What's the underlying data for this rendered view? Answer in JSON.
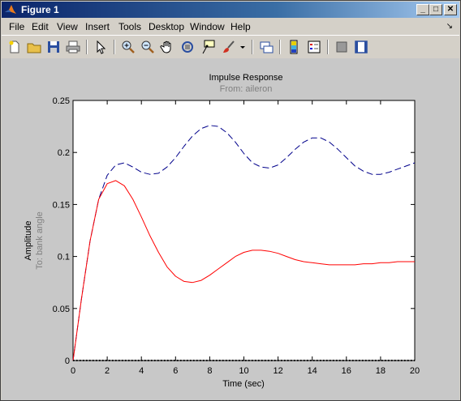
{
  "window": {
    "title": "Figure 1",
    "buttons": {
      "minimize": "_",
      "maximize": "□",
      "close": "✕"
    }
  },
  "menu": {
    "items": [
      "File",
      "Edit",
      "View",
      "Insert",
      "Tools",
      "Desktop",
      "Window",
      "Help"
    ],
    "dock_arrow": "↘"
  },
  "toolbar": {
    "icons": [
      "new-file-icon",
      "open-folder-icon",
      "save-icon",
      "print-icon",
      "pointer-icon",
      "zoom-in-icon",
      "zoom-out-icon",
      "pan-hand-icon",
      "rotate-3d-icon",
      "data-cursor-icon",
      "brush-icon",
      "brush-dropdown-icon",
      "link-plot-icon",
      "insert-colorbar-icon",
      "insert-legend-icon",
      "hide-plot-tools-icon",
      "show-plot-tools-icon"
    ]
  },
  "chart_data": {
    "type": "line",
    "title": "Impulse Response",
    "subtitle": "From: aileron",
    "xlabel": "Time (sec)",
    "ylabel": "Amplitude",
    "ylabel_sub": "To: bank angle",
    "xlim": [
      0,
      20
    ],
    "ylim": [
      0,
      0.25
    ],
    "xticks": [
      "0",
      "2",
      "4",
      "6",
      "8",
      "10",
      "12",
      "14",
      "16",
      "18",
      "20"
    ],
    "yticks": [
      "0",
      "0.05",
      "0.1",
      "0.15",
      "0.2",
      "0.25"
    ],
    "grid": false,
    "series": [
      {
        "color": "#00008b",
        "style": "dashed",
        "x": [
          0,
          0.5,
          1,
          1.5,
          2,
          2.5,
          3,
          3.5,
          4,
          4.5,
          5,
          5.5,
          6,
          6.5,
          7,
          7.5,
          8,
          8.5,
          9,
          9.5,
          10,
          10.5,
          11,
          11.5,
          12,
          12.5,
          13,
          13.5,
          14,
          14.5,
          15,
          15.5,
          16,
          16.5,
          17,
          17.5,
          18,
          18.5,
          19,
          19.5,
          20
        ],
        "y": [
          0,
          0.06,
          0.115,
          0.155,
          0.178,
          0.188,
          0.19,
          0.186,
          0.181,
          0.179,
          0.18,
          0.186,
          0.195,
          0.206,
          0.216,
          0.223,
          0.226,
          0.225,
          0.219,
          0.21,
          0.199,
          0.19,
          0.186,
          0.185,
          0.188,
          0.195,
          0.203,
          0.21,
          0.214,
          0.214,
          0.21,
          0.203,
          0.195,
          0.187,
          0.182,
          0.179,
          0.179,
          0.181,
          0.184,
          0.187,
          0.19
        ]
      },
      {
        "color": "#ff0000",
        "style": "solid",
        "x": [
          0,
          0.5,
          1,
          1.5,
          2,
          2.5,
          3,
          3.5,
          4,
          4.5,
          5,
          5.5,
          6,
          6.5,
          7,
          7.5,
          8,
          8.5,
          9,
          9.5,
          10,
          10.5,
          11,
          11.5,
          12,
          12.5,
          13,
          13.5,
          14,
          14.5,
          15,
          15.5,
          16,
          16.5,
          17,
          17.5,
          18,
          18.5,
          19,
          19.5,
          20
        ],
        "y": [
          0,
          0.06,
          0.115,
          0.155,
          0.17,
          0.173,
          0.168,
          0.155,
          0.138,
          0.12,
          0.104,
          0.09,
          0.081,
          0.076,
          0.075,
          0.077,
          0.082,
          0.088,
          0.094,
          0.1,
          0.104,
          0.106,
          0.106,
          0.105,
          0.103,
          0.1,
          0.097,
          0.095,
          0.094,
          0.093,
          0.092,
          0.092,
          0.092,
          0.092,
          0.093,
          0.093,
          0.094,
          0.094,
          0.095,
          0.095,
          0.095
        ]
      },
      {
        "color": "#000000",
        "style": "dotted",
        "x": [
          0,
          20
        ],
        "y": [
          0,
          0
        ]
      }
    ]
  }
}
